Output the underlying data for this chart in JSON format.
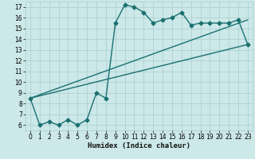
{
  "xlabel": "Humidex (Indice chaleur)",
  "xlim": [
    -0.5,
    23.5
  ],
  "ylim": [
    5.5,
    17.5
  ],
  "yticks": [
    6,
    7,
    8,
    9,
    10,
    11,
    12,
    13,
    14,
    15,
    16,
    17
  ],
  "xticks": [
    0,
    1,
    2,
    3,
    4,
    5,
    6,
    7,
    8,
    9,
    10,
    11,
    12,
    13,
    14,
    15,
    16,
    17,
    18,
    19,
    20,
    21,
    22,
    23
  ],
  "bg_color": "#cce8e8",
  "grid_color": "#aacece",
  "line_color": "#1a7070",
  "line1_x": [
    0,
    1,
    2,
    3,
    4,
    5,
    6,
    7,
    8,
    9,
    10,
    11,
    12,
    13,
    14,
    15,
    16,
    17,
    18,
    19,
    20,
    21,
    22,
    23
  ],
  "line1_y": [
    8.5,
    6.0,
    6.3,
    6.0,
    6.5,
    6.0,
    6.5,
    9.0,
    8.5,
    15.5,
    17.2,
    17.0,
    16.5,
    15.5,
    15.8,
    16.0,
    16.5,
    15.3,
    15.5,
    15.5,
    15.5,
    15.5,
    15.8,
    13.5
  ],
  "line2_x": [
    0,
    23
  ],
  "line2_y": [
    8.5,
    13.5
  ],
  "line3_x": [
    0,
    23
  ],
  "line3_y": [
    8.5,
    15.8
  ],
  "marker": "D",
  "marker_size": 2.5,
  "linewidth": 1.0,
  "tick_fontsize": 5.5,
  "xlabel_fontsize": 6.5
}
